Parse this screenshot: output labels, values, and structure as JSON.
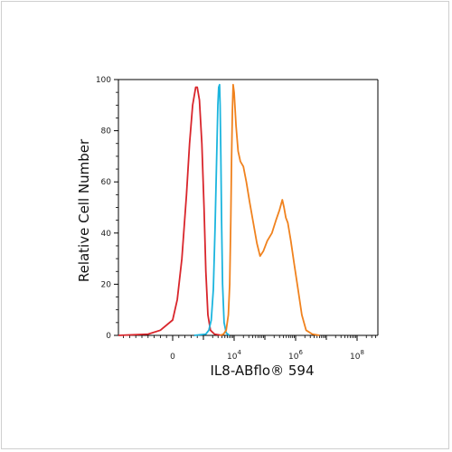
{
  "chart_data": {
    "type": "line",
    "title": "",
    "xlabel": "IL8-ABflo® 594",
    "ylabel": "Relative Cell Number",
    "x_scale": "biexponential",
    "ylim": [
      0,
      100
    ],
    "y_ticks": [
      0,
      20,
      40,
      60,
      80,
      100
    ],
    "x_ticks": [
      {
        "value": "0",
        "base": "0",
        "exp": ""
      },
      {
        "value": "10^4",
        "base": "10",
        "exp": "4"
      },
      {
        "value": "10^6",
        "base": "10",
        "exp": "6"
      },
      {
        "value": "10^8",
        "base": "10",
        "exp": "8"
      }
    ],
    "grid": false,
    "legend": "none",
    "series": [
      {
        "color": "#d9262c",
        "points": [
          [
            -2000,
            0
          ],
          [
            -800,
            0.5
          ],
          [
            -400,
            2
          ],
          [
            0,
            6
          ],
          [
            150,
            14
          ],
          [
            300,
            30
          ],
          [
            450,
            55
          ],
          [
            550,
            75
          ],
          [
            650,
            90
          ],
          [
            750,
            97
          ],
          [
            800,
            97
          ],
          [
            870,
            92
          ],
          [
            950,
            75
          ],
          [
            1050,
            50
          ],
          [
            1200,
            25
          ],
          [
            1400,
            8
          ],
          [
            1700,
            2
          ],
          [
            2300,
            0.5
          ],
          [
            4000,
            0
          ]
        ]
      },
      {
        "color": "#1cb5de",
        "points": [
          [
            700,
            0
          ],
          [
            1200,
            0.5
          ],
          [
            1500,
            2
          ],
          [
            1800,
            6
          ],
          [
            2100,
            18
          ],
          [
            2400,
            42
          ],
          [
            2700,
            70
          ],
          [
            2950,
            90
          ],
          [
            3150,
            97
          ],
          [
            3350,
            98
          ],
          [
            3500,
            90
          ],
          [
            3700,
            70
          ],
          [
            3900,
            45
          ],
          [
            4200,
            20
          ],
          [
            4700,
            5
          ],
          [
            5500,
            1
          ],
          [
            7000,
            0
          ]
        ]
      },
      {
        "color": "#f0821e",
        "points": [
          [
            3500,
            0
          ],
          [
            4500,
            0.5
          ],
          [
            5500,
            2
          ],
          [
            6500,
            8
          ],
          [
            7200,
            20
          ],
          [
            7800,
            45
          ],
          [
            8300,
            70
          ],
          [
            8800,
            88
          ],
          [
            9300,
            98
          ],
          [
            10000,
            95
          ],
          [
            11500,
            82
          ],
          [
            13500,
            72
          ],
          [
            16000,
            68
          ],
          [
            20000,
            66
          ],
          [
            25000,
            60
          ],
          [
            32000,
            52
          ],
          [
            42000,
            44
          ],
          [
            55000,
            36
          ],
          [
            70000,
            31
          ],
          [
            90000,
            33
          ],
          [
            120000,
            37
          ],
          [
            170000,
            40
          ],
          [
            230000,
            45
          ],
          [
            300000,
            49
          ],
          [
            370000,
            53
          ],
          [
            420000,
            50
          ],
          [
            480000,
            46
          ],
          [
            560000,
            44
          ],
          [
            700000,
            37
          ],
          [
            900000,
            28
          ],
          [
            1200000,
            18
          ],
          [
            1600000,
            8
          ],
          [
            2200000,
            2
          ],
          [
            3500000,
            0.5
          ],
          [
            6000000,
            0
          ]
        ]
      }
    ]
  }
}
